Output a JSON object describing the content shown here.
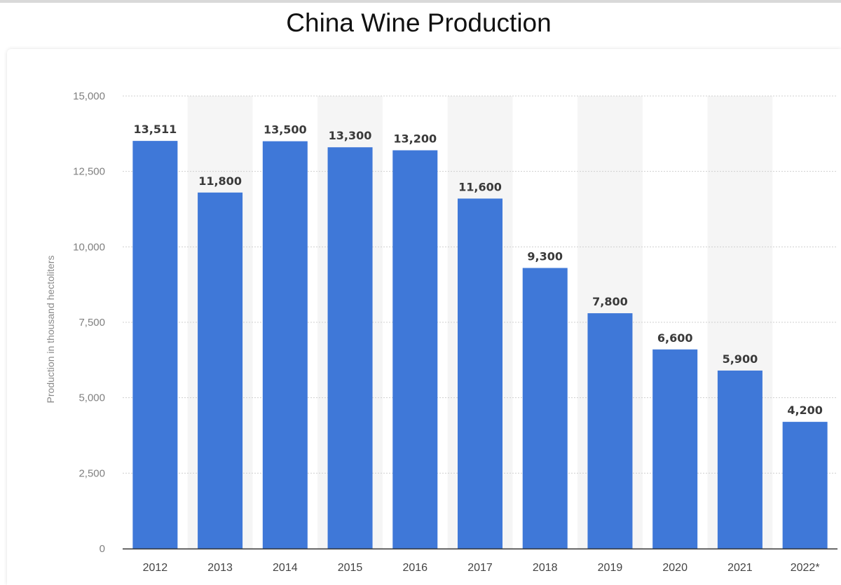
{
  "chart_data": {
    "type": "bar",
    "title": "China Wine Production",
    "ylabel": "Production in thousand hectoliters",
    "xlabel": "",
    "categories": [
      "2012",
      "2013",
      "2014",
      "2015",
      "2016",
      "2017",
      "2018",
      "2019",
      "2020",
      "2021",
      "2022*"
    ],
    "values": [
      13511,
      11800,
      13500,
      13300,
      13200,
      11600,
      9300,
      7800,
      6600,
      5900,
      4200
    ],
    "value_labels": [
      "13,511",
      "11,800",
      "13,500",
      "13,300",
      "13,200",
      "11,600",
      "9,300",
      "7,800",
      "6,600",
      "5,900",
      "4,200"
    ],
    "ylim": [
      0,
      15000
    ],
    "yticks": [
      0,
      2500,
      5000,
      7500,
      10000,
      12500,
      15000
    ],
    "ytick_labels": [
      "0",
      "2,500",
      "5,000",
      "7,500",
      "10,000",
      "12,500",
      "15,000"
    ],
    "grid": true,
    "bar_color": "#3f78d8",
    "alt_band_color": "#f5f5f5",
    "axis_color": "#333333",
    "grid_color": "#cfcfcf"
  }
}
